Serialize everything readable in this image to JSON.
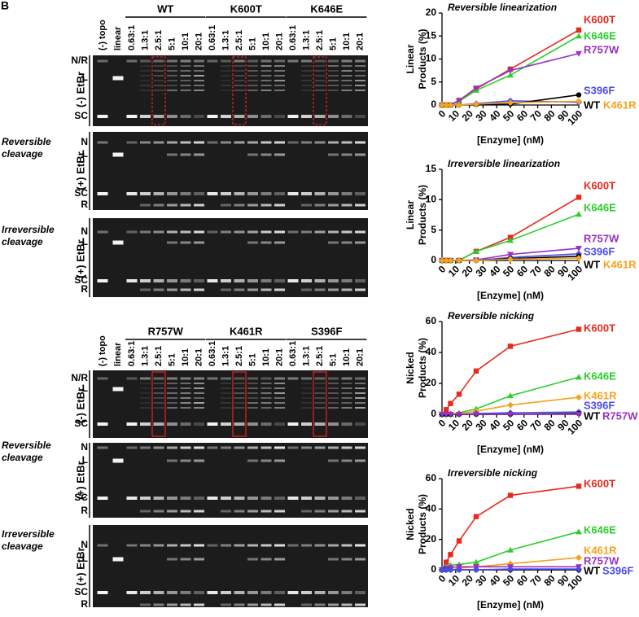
{
  "figure_label": "B",
  "gel_panels": [
    {
      "groups": [
        "WT",
        "K600T",
        "K646E"
      ],
      "lanes": [
        "(-) topo",
        "linear",
        "0.63:1",
        "1.3:1",
        "2.5:1",
        "5:1",
        "10:1",
        "20:1",
        "0.63:1",
        "1.3:1",
        "2.5:1",
        "5:1",
        "10:1",
        "20:1",
        "0.63:1",
        "1.3:1",
        "2.5:1",
        "5:1",
        "10:1",
        "20:1"
      ],
      "rows": [
        {
          "condition": "(-) EtBr",
          "bands": [
            "N/R",
            "L",
            "SC"
          ]
        },
        {
          "cleavage": [
            "Reversible",
            "cleavage"
          ],
          "condition": "(+) EtBr",
          "bands": [
            "N",
            "L",
            "SC",
            "R"
          ]
        },
        {
          "cleavage": [
            "Irreversible",
            "cleavage"
          ],
          "condition": "(+) EtBr",
          "bands": [
            "N",
            "L",
            "SC",
            "R"
          ]
        }
      ]
    },
    {
      "groups": [
        "R757W",
        "K461R",
        "S396F"
      ],
      "lanes": [
        "(-) topo",
        "linear",
        "0.63:1",
        "1.3:1",
        "2.5:1",
        "5:1",
        "10:1",
        "20:1",
        "0.63:1",
        "1.3:1",
        "2.5:1",
        "5:1",
        "10:1",
        "20:1",
        "0.63:1",
        "1.3:1",
        "2.5:1",
        "5:1",
        "10:1",
        "20:1"
      ],
      "rows": [
        {
          "condition": "(-) EtBr",
          "bands": [
            "N/R",
            "L",
            "SC"
          ]
        },
        {
          "cleavage": [
            "Reversible",
            "cleavage"
          ],
          "condition": "(+) EtBr",
          "bands": [
            "N",
            "L",
            "SC",
            "R"
          ]
        },
        {
          "cleavage": [
            "Irreversible",
            "cleavage"
          ],
          "condition": "(+) EtBr",
          "bands": [
            "N",
            "L",
            "SC",
            "R"
          ]
        }
      ]
    }
  ],
  "chart_data": [
    {
      "type": "line",
      "title": "Reversible linearization",
      "x": [
        0,
        3.1,
        6.25,
        12.5,
        25,
        50,
        100
      ],
      "xlim": [
        0,
        100
      ],
      "xticks": [
        0,
        10,
        20,
        30,
        40,
        50,
        60,
        70,
        80,
        90,
        100
      ],
      "xlabel": "[Enzyme] (nM)",
      "ylabel": [
        "Linear",
        "Products (%)"
      ],
      "ylim": [
        0,
        20
      ],
      "yticks": [
        0,
        5,
        10,
        15,
        20
      ],
      "series": [
        {
          "name": "K600T",
          "color": "#e8291c",
          "marker": "square",
          "values": [
            0,
            0,
            0,
            1,
            3.5,
            7.8,
            16.3
          ]
        },
        {
          "name": "K646E",
          "color": "#2bcf2b",
          "marker": "triangle",
          "values": [
            0,
            0,
            0,
            0.8,
            3.2,
            6.5,
            15
          ]
        },
        {
          "name": "R757W",
          "color": "#9a2fc1",
          "marker": "triangle-down",
          "values": [
            0,
            0,
            0,
            1,
            3.7,
            7.5,
            11.2
          ]
        },
        {
          "name": "S396F",
          "color": "#4b4bf0",
          "marker": "diamond",
          "values": [
            0,
            0,
            0,
            0,
            0.3,
            0.9,
            0.6
          ]
        },
        {
          "name": "WT",
          "color": "#000000",
          "marker": "circle",
          "values": [
            0,
            0,
            0,
            0,
            0.1,
            0.2,
            2.2
          ]
        },
        {
          "name": "K461R",
          "color": "#f7a11f",
          "marker": "diamond",
          "values": [
            0,
            0,
            0,
            0,
            0.2,
            0.5,
            0.8
          ]
        }
      ]
    },
    {
      "type": "line",
      "title": "Irreversible linearization",
      "x": [
        0,
        3.1,
        6.25,
        12.5,
        25,
        50,
        100
      ],
      "xlim": [
        0,
        100
      ],
      "xticks": [
        0,
        10,
        20,
        30,
        40,
        50,
        60,
        70,
        80,
        90,
        100
      ],
      "xlabel": "[Enzyme] (nM)",
      "ylabel": [
        "Linear",
        "Products (%)"
      ],
      "ylim": [
        0,
        15
      ],
      "yticks": [
        0,
        5,
        10,
        15
      ],
      "series": [
        {
          "name": "K600T",
          "color": "#e8291c",
          "marker": "square",
          "values": [
            0,
            0,
            0,
            0,
            1.5,
            3.8,
            10.4
          ]
        },
        {
          "name": "K646E",
          "color": "#2bcf2b",
          "marker": "triangle",
          "values": [
            0,
            0,
            0,
            0,
            1.5,
            3.3,
            7.6
          ]
        },
        {
          "name": "R757W",
          "color": "#9a2fc1",
          "marker": "triangle-down",
          "values": [
            0,
            0,
            0,
            0,
            0.1,
            1,
            2
          ]
        },
        {
          "name": "S396F",
          "color": "#4b4bf0",
          "marker": "diamond",
          "values": [
            0,
            0,
            0,
            0,
            0,
            0.5,
            1.1
          ]
        },
        {
          "name": "WT",
          "color": "#000000",
          "marker": "circle",
          "values": [
            0,
            0,
            0,
            0,
            0,
            0.3,
            0.7
          ]
        },
        {
          "name": "K461R",
          "color": "#f7a11f",
          "marker": "diamond",
          "values": [
            0,
            0,
            0,
            0,
            0,
            0.2,
            0.4
          ]
        }
      ]
    },
    {
      "type": "line",
      "title": "Reversible nicking",
      "x": [
        0,
        3.1,
        6.25,
        12.5,
        25,
        50,
        100
      ],
      "xlim": [
        0,
        100
      ],
      "xticks": [
        0,
        10,
        20,
        30,
        40,
        50,
        60,
        70,
        80,
        90,
        100
      ],
      "xlabel": "[Enzyme] (nM)",
      "ylabel": [
        "Nicked",
        "Products (%)"
      ],
      "ylim": [
        0,
        60
      ],
      "yticks": [
        0,
        20,
        40,
        60
      ],
      "series": [
        {
          "name": "K600T",
          "color": "#e8291c",
          "marker": "square",
          "values": [
            0,
            3,
            7,
            13,
            28,
            44,
            55
          ]
        },
        {
          "name": "K646E",
          "color": "#2bcf2b",
          "marker": "triangle",
          "values": [
            0,
            0,
            0,
            1,
            3.5,
            12,
            24
          ]
        },
        {
          "name": "K461R",
          "color": "#f7a11f",
          "marker": "diamond",
          "values": [
            0,
            0,
            0,
            0.5,
            2,
            6,
            11
          ]
        },
        {
          "name": "S396F",
          "color": "#4b4bf0",
          "marker": "diamond",
          "values": [
            0,
            0,
            0,
            0,
            0.5,
            1,
            1.5
          ]
        },
        {
          "name": "WT",
          "color": "#000000",
          "marker": "circle",
          "values": [
            0,
            0,
            0,
            0,
            0,
            0,
            0.5
          ]
        },
        {
          "name": "R757W",
          "color": "#9a2fc1",
          "marker": "triangle-down",
          "values": [
            0,
            0,
            0,
            0,
            0,
            0,
            0
          ]
        }
      ]
    },
    {
      "type": "line",
      "title": "Irreversible nicking",
      "x": [
        0,
        3.1,
        6.25,
        12.5,
        25,
        50,
        100
      ],
      "xlim": [
        0,
        100
      ],
      "xticks": [
        0,
        10,
        20,
        30,
        40,
        50,
        60,
        70,
        80,
        90,
        100
      ],
      "xlabel": "[Enzyme] (nM)",
      "ylabel": [
        "Nicked",
        "Products (%)"
      ],
      "ylim": [
        0,
        60
      ],
      "yticks": [
        0,
        20,
        40,
        60
      ],
      "series": [
        {
          "name": "K600T",
          "color": "#e8291c",
          "marker": "square",
          "values": [
            0,
            5,
            10,
            19,
            35,
            49,
            55
          ]
        },
        {
          "name": "K646E",
          "color": "#2bcf2b",
          "marker": "triangle",
          "values": [
            0,
            2,
            3,
            3.5,
            5,
            13,
            25
          ]
        },
        {
          "name": "K461R",
          "color": "#f7a11f",
          "marker": "diamond",
          "values": [
            0,
            0,
            0,
            1,
            2,
            4,
            8
          ]
        },
        {
          "name": "R757W",
          "color": "#9a2fc1",
          "marker": "triangle-down",
          "values": [
            0,
            1,
            1.5,
            2,
            2,
            2,
            2
          ]
        },
        {
          "name": "WT",
          "color": "#000000",
          "marker": "circle",
          "values": [
            0,
            0,
            0,
            0,
            0,
            0,
            0
          ]
        },
        {
          "name": "S396F",
          "color": "#4b4bf0",
          "marker": "diamond",
          "values": [
            0,
            0,
            0,
            0,
            0,
            0.5,
            0.5
          ]
        }
      ]
    }
  ]
}
